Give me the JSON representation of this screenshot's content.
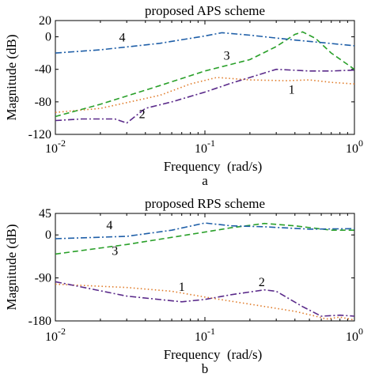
{
  "chart_data": [
    {
      "type": "line",
      "panel": "a",
      "title": "proposed APS scheme",
      "xlabel": "Frequency  (rad/s)",
      "ylabel": "Magnitude (dB)",
      "caption": "a",
      "xscale": "log",
      "xlim": [
        0.01,
        1
      ],
      "ylim": [
        -120,
        20
      ],
      "yticks": [
        20,
        0,
        -40,
        -80,
        -120
      ],
      "ytick_labels": [
        "20",
        "0",
        "-40",
        "-80",
        "-120"
      ],
      "xticks": [
        0.01,
        0.1,
        1
      ],
      "xtick_labels": [
        {
          "base": "10",
          "exp": "-2"
        },
        {
          "base": "10",
          "exp": "-1"
        },
        {
          "base": "10",
          "exp": "0"
        }
      ],
      "grid": false,
      "series": [
        {
          "name": "1",
          "color": "#e07b28",
          "dash": "dotted",
          "label_at": [
            0.38,
            -70
          ],
          "x": [
            0.01,
            0.02,
            0.05,
            0.08,
            0.12,
            0.2,
            0.35,
            0.5,
            0.7,
            1.0
          ],
          "y": [
            -93,
            -88,
            -72,
            -58,
            -50,
            -53,
            -54,
            -53,
            -56,
            -58
          ]
        },
        {
          "name": "2",
          "color": "#5a2a8a",
          "dash": "dashdot",
          "label_at": [
            0.038,
            -100
          ],
          "x": [
            0.01,
            0.015,
            0.025,
            0.03,
            0.04,
            0.06,
            0.1,
            0.15,
            0.2,
            0.3,
            0.5,
            0.7,
            1.0
          ],
          "y": [
            -103,
            -101,
            -101,
            -106,
            -88,
            -80,
            -68,
            -57,
            -50,
            -40,
            -42,
            -42,
            -41
          ]
        },
        {
          "name": "3",
          "color": "#2aa02a",
          "dash": "dashed",
          "label_at": [
            0.14,
            -28
          ],
          "x": [
            0.01,
            0.02,
            0.05,
            0.1,
            0.2,
            0.3,
            0.4,
            0.45,
            0.55,
            0.7,
            1.0
          ],
          "y": [
            -98,
            -83,
            -60,
            -42,
            -28,
            -12,
            3,
            6,
            -2,
            -20,
            -40
          ]
        },
        {
          "name": "4",
          "color": "#1f5fa8",
          "dash": "dashdot",
          "label_at": [
            0.028,
            -6
          ],
          "x": [
            0.01,
            0.02,
            0.05,
            0.1,
            0.13,
            0.2,
            0.4,
            0.6,
            1.0
          ],
          "y": [
            -20,
            -16,
            -8,
            1,
            5,
            2,
            -4,
            -7,
            -11
          ]
        }
      ]
    },
    {
      "type": "line",
      "panel": "b",
      "title": "proposed RPS scheme",
      "xlabel": "Frequency  (rad/s)",
      "ylabel": "Magnitude (dB)",
      "caption": "b",
      "xscale": "log",
      "xlim": [
        0.01,
        1
      ],
      "ylim": [
        -180,
        45
      ],
      "yticks": [
        45,
        0,
        -90,
        -180
      ],
      "ytick_labels": [
        "45",
        "0",
        "-90",
        "-180"
      ],
      "xticks": [
        0.01,
        0.1,
        1
      ],
      "xtick_labels": [
        {
          "base": "10",
          "exp": "-2"
        },
        {
          "base": "10",
          "exp": "-1"
        },
        {
          "base": "10",
          "exp": "0"
        }
      ],
      "grid": false,
      "series": [
        {
          "name": "1",
          "color": "#e07b28",
          "dash": "dotted",
          "label_at": [
            0.07,
            -117
          ],
          "x": [
            0.01,
            0.03,
            0.06,
            0.1,
            0.2,
            0.4,
            0.55,
            0.65,
            0.8,
            1.0
          ],
          "y": [
            -103,
            -110,
            -118,
            -130,
            -145,
            -160,
            -170,
            -176,
            -172,
            -178
          ]
        },
        {
          "name": "2",
          "color": "#5a2a8a",
          "dash": "dashdot",
          "label_at": [
            0.24,
            -107
          ],
          "x": [
            0.01,
            0.03,
            0.07,
            0.1,
            0.15,
            0.25,
            0.3,
            0.45,
            0.6,
            0.8,
            1.0
          ],
          "y": [
            -98,
            -128,
            -140,
            -135,
            -125,
            -115,
            -118,
            -150,
            -170,
            -168,
            -170
          ]
        },
        {
          "name": "3",
          "color": "#2aa02a",
          "dash": "dashed",
          "label_at": [
            0.025,
            -42
          ],
          "x": [
            0.01,
            0.03,
            0.1,
            0.15,
            0.25,
            0.4,
            0.7,
            1.0
          ],
          "y": [
            -40,
            -20,
            6,
            15,
            24,
            19,
            10,
            10
          ]
        },
        {
          "name": "4",
          "color": "#1f5fa8",
          "dash": "dashdot",
          "label_at": [
            0.023,
            12
          ],
          "x": [
            0.01,
            0.03,
            0.06,
            0.1,
            0.15,
            0.25,
            0.5,
            1.0
          ],
          "y": [
            -8,
            -3,
            10,
            25,
            19,
            17,
            12,
            13
          ]
        }
      ]
    }
  ]
}
